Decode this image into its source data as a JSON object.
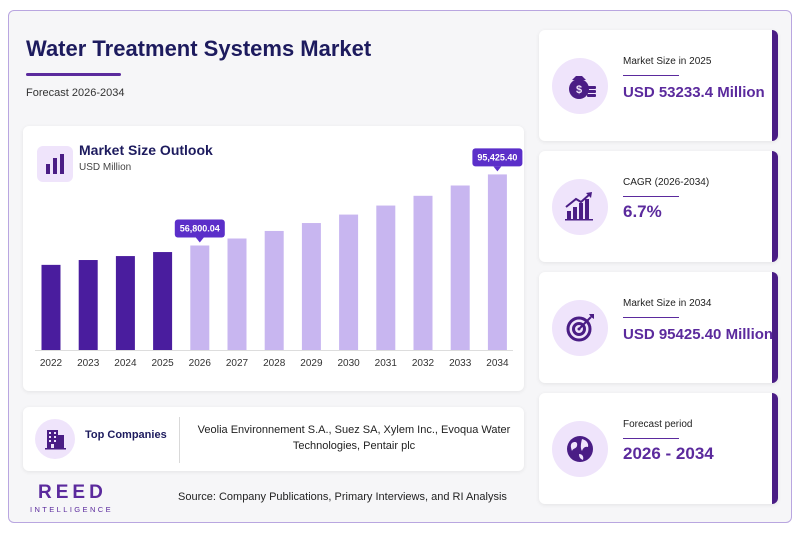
{
  "header": {
    "title": "Water Treatment Systems Market",
    "subtitle": "Forecast 2026-2034"
  },
  "chart_panel": {
    "title": "Market Size Outlook",
    "unit": "USD Million"
  },
  "chart_data": {
    "type": "bar",
    "title": "Market Size Outlook",
    "ylabel": "USD Million",
    "categories": [
      "2022",
      "2023",
      "2024",
      "2025",
      "2026",
      "2027",
      "2028",
      "2029",
      "2030",
      "2031",
      "2032",
      "2033",
      "2034"
    ],
    "values": [
      46270,
      48900,
      51050,
      53233.4,
      56800.04,
      60600,
      64700,
      69000,
      73600,
      78500,
      83800,
      89400,
      95425.4
    ],
    "ylim": [
      0,
      100000
    ],
    "annotations": [
      {
        "category": "2026",
        "label": "56,800.04"
      },
      {
        "category": "2034",
        "label": "95,425.40"
      }
    ],
    "colors": {
      "historical": "#4a1d9e",
      "forecast": "#c8b6f0",
      "callout": "#5b2fc9"
    },
    "historical_through": "2025",
    "grid": false,
    "legend": "none"
  },
  "companies": {
    "label": "Top Companies",
    "text": "Veolia Environnement S.A., Suez SA, Xylem Inc., Evoqua Water Technologies, Pentair plc"
  },
  "logo": {
    "main": "REED",
    "sub": "INTELLIGENCE"
  },
  "source": "Source: Company Publications, Primary Interviews, and RI Analysis",
  "stats": [
    {
      "label": "Market Size in 2025",
      "value": "USD 53233.4 Million",
      "icon": "money-bag-icon"
    },
    {
      "label": "CAGR (2026-2034)",
      "value": "6.7%",
      "icon": "growth-chart-icon"
    },
    {
      "label": "Market Size in 2034",
      "value": "USD 95425.40 Million",
      "icon": "target-icon"
    },
    {
      "label": "Forecast period",
      "value": "2026 - 2034",
      "icon": "globe-icon"
    }
  ],
  "theme": {
    "accent": "#5b2a9d",
    "title_color": "#1d1b5e",
    "icon_bg": "#efe4fb"
  }
}
